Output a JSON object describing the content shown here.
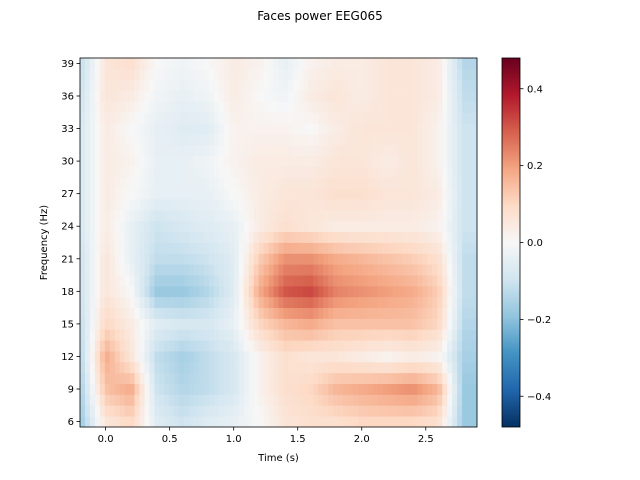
{
  "chart_data": {
    "type": "heatmap",
    "title": "Faces power EEG065",
    "xlabel": "Time (s)",
    "ylabel": "Frequency (Hz)",
    "xlim": [
      -0.2,
      2.9
    ],
    "ylim": [
      5.5,
      39.5
    ],
    "x_ticks": [
      0.0,
      0.5,
      1.0,
      1.5,
      2.0,
      2.5
    ],
    "x_tick_labels": [
      "0.0",
      "0.5",
      "1.0",
      "1.5",
      "2.0",
      "2.5"
    ],
    "y_ticks": [
      6,
      9,
      12,
      15,
      18,
      21,
      24,
      27,
      30,
      33,
      36,
      39
    ],
    "y_tick_labels": [
      "6",
      "9",
      "12",
      "15",
      "18",
      "21",
      "24",
      "27",
      "30",
      "33",
      "36",
      "39"
    ],
    "colorbar": {
      "colormap": "RdBu_r",
      "vmin": -0.48,
      "vmax": 0.48,
      "ticks": [
        -0.4,
        -0.2,
        0.0,
        0.2,
        0.4
      ],
      "tick_labels": [
        "−0.4",
        "−0.2",
        "0.0",
        "0.2",
        "0.4"
      ]
    },
    "frequencies": [
      6,
      9,
      12,
      15,
      18,
      21,
      24,
      27,
      30,
      33,
      36,
      39
    ],
    "times": [
      -0.2,
      0.0,
      0.2,
      0.4,
      0.6,
      0.8,
      1.0,
      1.2,
      1.4,
      1.6,
      1.8,
      2.0,
      2.2,
      2.4,
      2.6,
      2.8
    ],
    "power": [
      [
        -0.18,
        0.06,
        0.1,
        -0.06,
        -0.1,
        -0.06,
        -0.04,
        0.0,
        0.06,
        0.08,
        0.08,
        0.1,
        0.1,
        0.1,
        0.08,
        -0.18
      ],
      [
        -0.16,
        0.14,
        0.18,
        -0.1,
        -0.14,
        -0.12,
        -0.08,
        0.02,
        0.08,
        0.1,
        0.16,
        0.18,
        0.2,
        0.22,
        0.16,
        -0.18
      ],
      [
        -0.14,
        0.18,
        0.06,
        -0.12,
        -0.16,
        -0.12,
        -0.08,
        0.02,
        0.08,
        0.06,
        0.06,
        0.04,
        0.02,
        0.04,
        0.02,
        -0.16
      ],
      [
        -0.12,
        0.1,
        0.04,
        -0.06,
        -0.08,
        -0.08,
        -0.04,
        0.1,
        0.16,
        0.18,
        0.14,
        0.14,
        0.14,
        0.14,
        0.1,
        -0.14
      ],
      [
        -0.1,
        0.06,
        0.0,
        -0.18,
        -0.18,
        -0.14,
        -0.06,
        0.18,
        0.3,
        0.32,
        0.24,
        0.22,
        0.2,
        0.18,
        0.12,
        -0.12
      ],
      [
        -0.1,
        0.06,
        -0.04,
        -0.12,
        -0.12,
        -0.1,
        -0.06,
        0.12,
        0.22,
        0.22,
        0.18,
        0.16,
        0.14,
        0.12,
        0.08,
        -0.12
      ],
      [
        -0.08,
        0.04,
        -0.04,
        -0.1,
        -0.08,
        -0.06,
        -0.04,
        0.04,
        0.08,
        0.06,
        0.04,
        0.04,
        0.04,
        0.04,
        0.02,
        -0.1
      ],
      [
        -0.08,
        0.04,
        0.0,
        -0.04,
        -0.04,
        -0.04,
        0.0,
        0.04,
        0.06,
        0.06,
        0.08,
        0.08,
        0.06,
        0.06,
        0.04,
        -0.1
      ],
      [
        -0.08,
        0.04,
        0.02,
        -0.04,
        -0.04,
        -0.02,
        0.02,
        0.04,
        0.04,
        0.04,
        0.06,
        0.06,
        0.04,
        0.06,
        0.02,
        -0.1
      ],
      [
        -0.08,
        0.04,
        0.0,
        -0.04,
        -0.06,
        -0.06,
        0.02,
        0.02,
        0.02,
        0.0,
        0.04,
        0.06,
        0.06,
        0.06,
        0.02,
        -0.1
      ],
      [
        -0.1,
        0.06,
        0.04,
        -0.02,
        -0.04,
        -0.02,
        0.04,
        0.0,
        -0.02,
        0.04,
        0.06,
        0.04,
        0.06,
        0.06,
        0.04,
        -0.12
      ],
      [
        -0.12,
        0.06,
        0.08,
        0.0,
        -0.02,
        0.0,
        0.04,
        0.02,
        -0.04,
        0.02,
        0.04,
        0.04,
        0.06,
        0.06,
        0.04,
        -0.14
      ]
    ]
  }
}
